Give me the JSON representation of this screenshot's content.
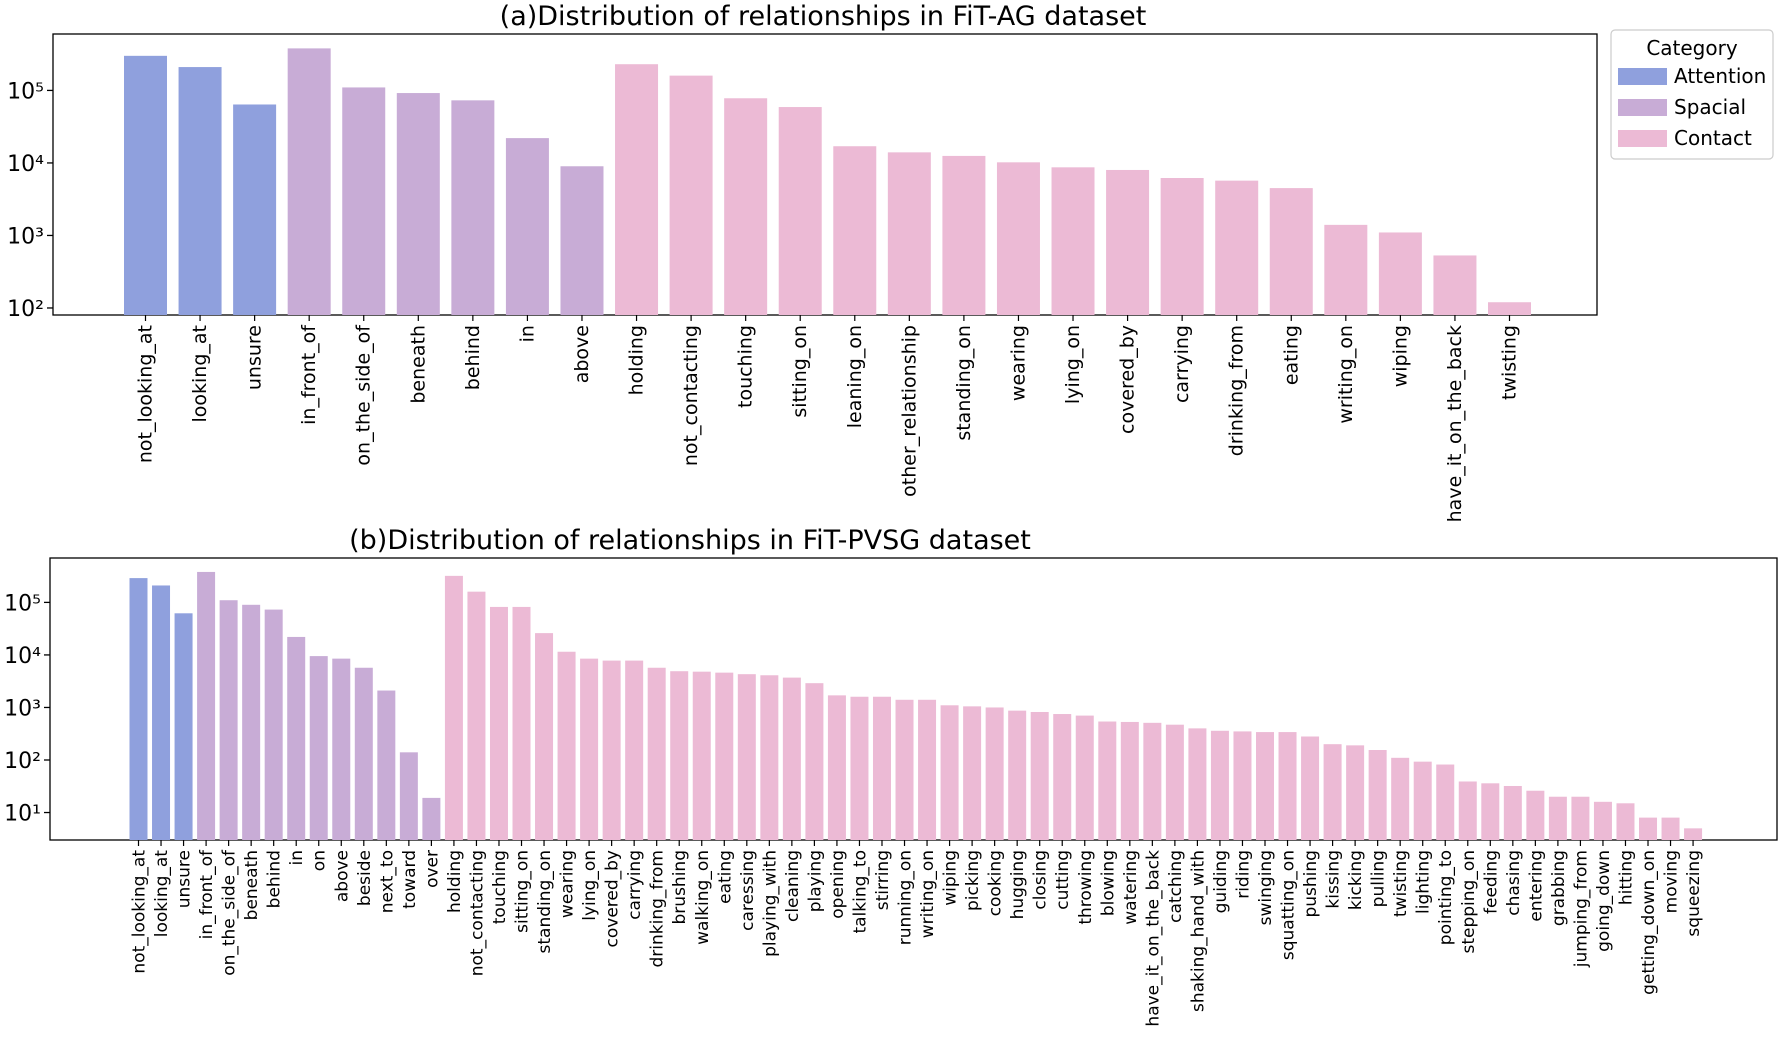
{
  "legend": {
    "title": "Category",
    "items": [
      {
        "label": "Attention",
        "color": "#8fa0dd"
      },
      {
        "label": "Spacial",
        "color": "#c8acd6"
      },
      {
        "label": "Contact",
        "color": "#ecbad5"
      }
    ]
  },
  "chart_data": [
    {
      "type": "bar",
      "title": "(a)Distribution of relationships in FiT-AG dataset",
      "xlabel": "",
      "ylabel": "",
      "yscale": "log",
      "ylim": [
        80,
        600000
      ],
      "ytick_labels": [
        "10²",
        "10³",
        "10⁴",
        "10⁵"
      ],
      "ytick_values": [
        100,
        1000,
        10000,
        100000
      ],
      "categories": [
        "not_looking_at",
        "looking_at",
        "unsure",
        "in_front_of",
        "on_the_side_of",
        "beneath",
        "behind",
        "in",
        "above",
        "holding",
        "not_contacting",
        "touching",
        "sitting_on",
        "leaning_on",
        "other_relationship",
        "standing_on",
        "wearing",
        "lying_on",
        "covered_by",
        "carrying",
        "drinking_from",
        "eating",
        "writing_on",
        "wiping",
        "have_it_on_the_back",
        "twisting"
      ],
      "values": [
        300000,
        210000,
        64000,
        380000,
        110000,
        92000,
        73000,
        22000,
        9000,
        230000,
        160000,
        78000,
        59000,
        17000,
        14000,
        12500,
        10200,
        8700,
        8000,
        6200,
        5700,
        4500,
        1400,
        1100,
        530,
        120
      ],
      "groups": [
        "Attention",
        "Attention",
        "Attention",
        "Spacial",
        "Spacial",
        "Spacial",
        "Spacial",
        "Spacial",
        "Spacial",
        "Contact",
        "Contact",
        "Contact",
        "Contact",
        "Contact",
        "Contact",
        "Contact",
        "Contact",
        "Contact",
        "Contact",
        "Contact",
        "Contact",
        "Contact",
        "Contact",
        "Contact",
        "Contact",
        "Contact"
      ]
    },
    {
      "type": "bar",
      "title": "(b)Distribution of relationships in FiT-PVSG dataset",
      "xlabel": "",
      "ylabel": "",
      "yscale": "log",
      "ylim": [
        3,
        700000
      ],
      "ytick_labels": [
        "10¹",
        "10²",
        "10³",
        "10⁴",
        "10⁵"
      ],
      "ytick_values": [
        10,
        100,
        1000,
        10000,
        100000
      ],
      "categories": [
        "not_looking_at",
        "looking_at",
        "unsure",
        "in_front_of",
        "on_the_side_of",
        "beneath",
        "behind",
        "in",
        "on",
        "above",
        "beside",
        "next_to",
        "toward",
        "over",
        "holding",
        "not_contacting",
        "touching",
        "sitting_on",
        "standing_on",
        "wearing",
        "lying_on",
        "covered_by",
        "carrying",
        "drinking_from",
        "brushing",
        "walking_on",
        "eating",
        "caressing",
        "playing_with",
        "cleaning",
        "playing",
        "opening",
        "talking_to",
        "stirring",
        "running_on",
        "writing_on",
        "wiping",
        "picking",
        "cooking",
        "hugging",
        "closing",
        "cutting",
        "throwing",
        "blowing",
        "watering",
        "have_it_on_the_back",
        "catching",
        "shaking_hand_with",
        "guiding",
        "riding",
        "swinging",
        "squatting_on",
        "pushing",
        "kissing",
        "kicking",
        "pulling",
        "twisting",
        "lighting",
        "pointing_to",
        "stepping_on",
        "feeding",
        "chasing",
        "entering",
        "grabbing",
        "jumping_from",
        "going_down",
        "hitting",
        "getting_down_on",
        "moving",
        "squeezing"
      ],
      "values": [
        290000,
        210000,
        62000,
        380000,
        110000,
        90000,
        73000,
        22000,
        9500,
        8500,
        5700,
        2100,
        140,
        19,
        320000,
        160000,
        82000,
        82000,
        26000,
        11500,
        8500,
        7800,
        7800,
        5700,
        4900,
        4800,
        4600,
        4300,
        4100,
        3700,
        2900,
        1700,
        1600,
        1600,
        1400,
        1400,
        1100,
        1050,
        1000,
        870,
        820,
        750,
        700,
        540,
        530,
        510,
        470,
        400,
        360,
        350,
        340,
        340,
        280,
        200,
        190,
        155,
        110,
        93,
        82,
        39,
        36,
        32,
        26,
        20,
        20,
        16,
        15,
        8,
        8,
        5
      ],
      "groups": [
        "Attention",
        "Attention",
        "Attention",
        "Spacial",
        "Spacial",
        "Spacial",
        "Spacial",
        "Spacial",
        "Spacial",
        "Spacial",
        "Spacial",
        "Spacial",
        "Spacial",
        "Spacial",
        "Contact",
        "Contact",
        "Contact",
        "Contact",
        "Contact",
        "Contact",
        "Contact",
        "Contact",
        "Contact",
        "Contact",
        "Contact",
        "Contact",
        "Contact",
        "Contact",
        "Contact",
        "Contact",
        "Contact",
        "Contact",
        "Contact",
        "Contact",
        "Contact",
        "Contact",
        "Contact",
        "Contact",
        "Contact",
        "Contact",
        "Contact",
        "Contact",
        "Contact",
        "Contact",
        "Contact",
        "Contact",
        "Contact",
        "Contact",
        "Contact",
        "Contact",
        "Contact",
        "Contact",
        "Contact",
        "Contact",
        "Contact",
        "Contact",
        "Contact",
        "Contact",
        "Contact",
        "Contact",
        "Contact",
        "Contact",
        "Contact",
        "Contact",
        "Contact",
        "Contact",
        "Contact",
        "Contact",
        "Contact",
        "Contact"
      ]
    }
  ]
}
